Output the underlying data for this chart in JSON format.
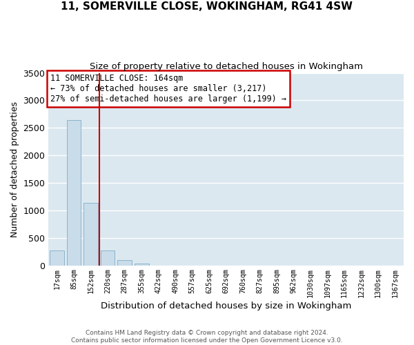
{
  "title": "11, SOMERVILLE CLOSE, WOKINGHAM, RG41 4SW",
  "subtitle": "Size of property relative to detached houses in Wokingham",
  "xlabel": "Distribution of detached houses by size in Wokingham",
  "ylabel": "Number of detached properties",
  "bar_labels": [
    "17sqm",
    "85sqm",
    "152sqm",
    "220sqm",
    "287sqm",
    "355sqm",
    "422sqm",
    "490sqm",
    "557sqm",
    "625sqm",
    "692sqm",
    "760sqm",
    "827sqm",
    "895sqm",
    "962sqm",
    "1030sqm",
    "1097sqm",
    "1165sqm",
    "1232sqm",
    "1300sqm",
    "1367sqm"
  ],
  "bar_values": [
    275,
    2640,
    1140,
    275,
    95,
    35,
    0,
    0,
    0,
    0,
    0,
    0,
    0,
    0,
    0,
    0,
    0,
    0,
    0,
    0,
    0
  ],
  "bar_color": "#c9dcea",
  "bar_edge_color": "#8ab4cc",
  "vline_x": 2.5,
  "vline_color": "#cc0000",
  "ylim": [
    0,
    3500
  ],
  "yticks": [
    0,
    500,
    1000,
    1500,
    2000,
    2500,
    3000,
    3500
  ],
  "annotation_box_text": "11 SOMERVILLE CLOSE: 164sqm\n← 73% of detached houses are smaller (3,217)\n27% of semi-detached houses are larger (1,199) →",
  "footer_line1": "Contains HM Land Registry data © Crown copyright and database right 2024.",
  "footer_line2": "Contains public sector information licensed under the Open Government Licence v3.0.",
  "fig_background_color": "#ffffff",
  "plot_background_color": "#dce8f0",
  "grid_color": "#ffffff",
  "title_fontsize": 11,
  "subtitle_fontsize": 9.5
}
